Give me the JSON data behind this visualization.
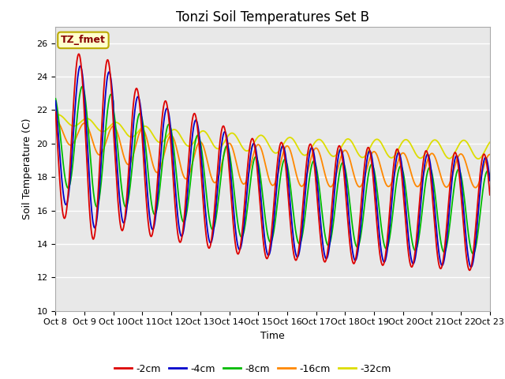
{
  "title": "Tonzi Soil Temperatures Set B",
  "xlabel": "Time",
  "ylabel": "Soil Temperature (C)",
  "ylim": [
    10,
    27
  ],
  "series_labels": [
    "-2cm",
    "-4cm",
    "-8cm",
    "-16cm",
    "-32cm"
  ],
  "series_colors": [
    "#dd0000",
    "#0000cc",
    "#00bb00",
    "#ff8800",
    "#dddd00"
  ],
  "annotation_text": "TZ_fmet",
  "annotation_bg": "#ffffcc",
  "annotation_border": "#bbaa00",
  "annotation_text_color": "#880000",
  "plot_bg": "#e8e8e8",
  "fig_bg": "#ffffff",
  "grid_color": "#ffffff",
  "title_fontsize": 12,
  "axis_fontsize": 9,
  "tick_fontsize": 8,
  "yticks": [
    10,
    12,
    14,
    16,
    18,
    20,
    22,
    24,
    26
  ],
  "tick_labels": [
    "Oct 8",
    "Oct 9",
    "Oct 10",
    "Oct 11",
    "Oct 12",
    "Oct 13",
    "Oct 14",
    "Oct 15",
    "Oct 16",
    "Oct 17",
    "Oct 18",
    "Oct 19",
    "Oct 20",
    "Oct 21",
    "Oct 22",
    "Oct 23"
  ],
  "n_days": 15,
  "n_per_day": 144
}
